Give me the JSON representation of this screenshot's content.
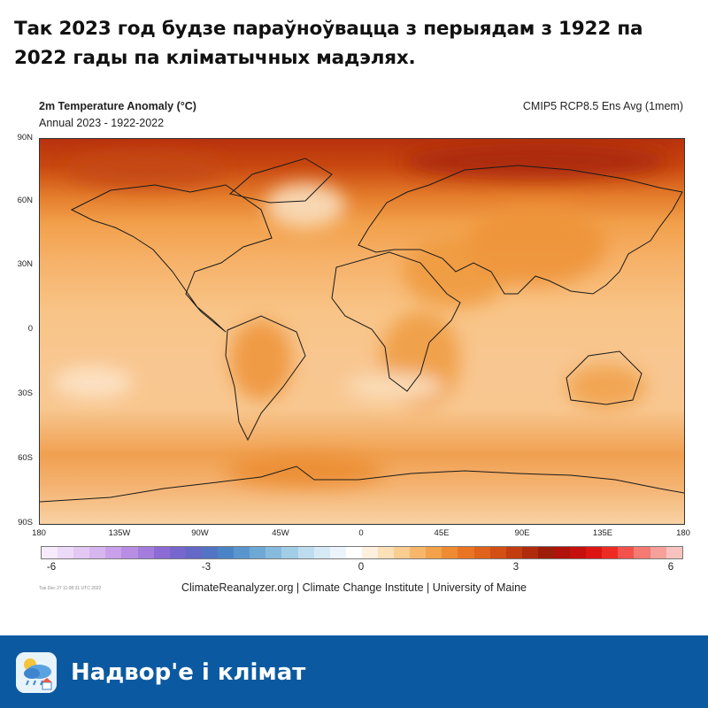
{
  "headline": "Так 2023 год будзе параўноўвацца з перыядам з 1922 па 2022 гады па кліматычных мадэлях.",
  "map": {
    "title": "2m Temperature Anomaly (°C)",
    "subtitle": "Annual 2023 - 1922-2022",
    "model": "CMIP5 RCP8.5 Ens Avg (1mem)",
    "lat_labels": [
      "90N",
      "60N",
      "30N",
      "0",
      "30S",
      "60S",
      "90S"
    ],
    "lon_labels": [
      "180",
      "135W",
      "90W",
      "45W",
      "0",
      "45E",
      "90E",
      "135E",
      "180"
    ],
    "colorbar": {
      "labels": [
        "-6",
        "-3",
        "0",
        "3",
        "6"
      ],
      "colors": [
        "#f6eafb",
        "#eddaf8",
        "#e3c8f4",
        "#d7b5ef",
        "#c9a0e9",
        "#b78ee3",
        "#a47cdc",
        "#8c6bd4",
        "#7666cd",
        "#6468c6",
        "#5374c4",
        "#4b84c6",
        "#5a96cd",
        "#6ea8d5",
        "#86bbde",
        "#a2cde7",
        "#bdddef",
        "#d6eaf6",
        "#ebf4fa",
        "#ffffff",
        "#fdf0de",
        "#fbe0b8",
        "#f9cc8f",
        "#f6b76a",
        "#f3a24b",
        "#ef8b32",
        "#e97524",
        "#e0621b",
        "#d24f15",
        "#c23c10",
        "#b02b0c",
        "#9e1d09",
        "#b0120c",
        "#c6100f",
        "#dc1512",
        "#ee2b22",
        "#f2524b",
        "#f47a72",
        "#f6a09a",
        "#f8c3bf"
      ]
    },
    "timestamp": "Tue Dec 27 11:08:31 UTC 2022",
    "credit": "ClimateReanalyzer.org | Climate Change Institute | University of Maine"
  },
  "footer": {
    "brand": "Надвор'е і клімат",
    "app_icon": "weather-app-icon",
    "background": "#0b5aa1"
  }
}
